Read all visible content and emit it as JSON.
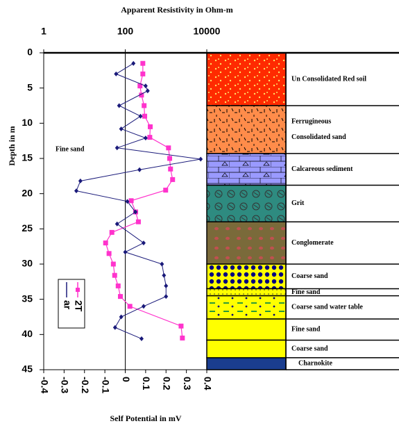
{
  "chart_data": {
    "type": "line",
    "title": "Apparent Resistivity in Ohm-m",
    "y_label": "Depth in m",
    "x_label": "Self Potential in mV",
    "annotation": "Fine sand",
    "ylim": [
      0,
      45
    ],
    "yticks": [
      0,
      5,
      10,
      15,
      20,
      25,
      30,
      35,
      40,
      45
    ],
    "xlim": [
      -0.4,
      0.4
    ],
    "xticks": [
      -0.4,
      -0.3,
      -0.2,
      -0.1,
      0,
      0.1,
      0.2,
      0.3,
      0.4
    ],
    "x2lim": [
      1,
      10000
    ],
    "x2ticks": [
      1,
      100,
      10000
    ],
    "x2log": true,
    "series": [
      {
        "name": "2T",
        "color": "#ff33cc",
        "axis": "x2",
        "depth": [
          1.5,
          3,
          4.7,
          6,
          7.5,
          9,
          10.5,
          12,
          13.5,
          15,
          16.5,
          18,
          19.5,
          21,
          22.6,
          24,
          25.5,
          27,
          28.5,
          30,
          31.6,
          33.1,
          34.6,
          36,
          38.8,
          40.5
        ],
        "values": [
          270,
          270,
          230,
          250,
          290,
          300,
          410,
          400,
          1150,
          1230,
          1290,
          1450,
          980,
          140,
          180,
          210,
          47,
          33,
          40,
          51,
          55,
          67,
          76,
          130,
          2340,
          2520
        ]
      },
      {
        "name": "ar",
        "color": "#1a1a7a",
        "depth": [
          1.5,
          3,
          4.7,
          5.4,
          7.5,
          9,
          10.8,
          12.1,
          13.5,
          15.1,
          16.6,
          18.2,
          19.6,
          21.1,
          22.6,
          24.3,
          27,
          28.3,
          30,
          31.6,
          33.1,
          34.6,
          36,
          37.5,
          39,
          40.6
        ],
        "values": [
          0.04,
          -0.045,
          0.1,
          0.11,
          -0.03,
          0.075,
          -0.02,
          0.1,
          -0.04,
          0.37,
          0.07,
          -0.22,
          -0.24,
          0.01,
          0.05,
          -0.04,
          0.09,
          0,
          0.18,
          0.19,
          0.2,
          0.2,
          0.09,
          -0.02,
          -0.05,
          0.08
        ]
      }
    ]
  },
  "lithology": {
    "layers": [
      {
        "top": 0,
        "bottom": 7.5,
        "label": [
          "Un Consolidated Red soil"
        ],
        "color": "#ff2a00"
      },
      {
        "top": 7.5,
        "bottom": 14.3,
        "label": [
          "Ferrugineous",
          "Consolidated sand"
        ],
        "color": "#ff8c4a"
      },
      {
        "top": 14.3,
        "bottom": 18.8,
        "label": [
          "Calcareous sediment"
        ],
        "color": "#9a9aff"
      },
      {
        "top": 18.8,
        "bottom": 24,
        "label": [
          "Grit"
        ],
        "color": "#2e8b80"
      },
      {
        "top": 24,
        "bottom": 30,
        "label": [
          "Conglomerate"
        ],
        "color": "#7a6a3a"
      },
      {
        "top": 30,
        "bottom": 33.5,
        "label": [
          "Coarse sand"
        ],
        "color": "#ffff00"
      },
      {
        "top": 33.5,
        "bottom": 34.5,
        "label": [
          "Fine sand"
        ],
        "color": "#ffff00"
      },
      {
        "top": 34.5,
        "bottom": 37.8,
        "label": [
          "Coarse sand  water table"
        ],
        "color": "#ffff00"
      },
      {
        "top": 37.8,
        "bottom": 40.8,
        "label": [
          "Fine sand"
        ],
        "color": "#ffff00"
      },
      {
        "top": 40.8,
        "bottom": 43.3,
        "label": [
          "Coarse sand"
        ],
        "color": "#ffff00"
      },
      {
        "top": 43.3,
        "bottom": 45,
        "label": [
          "Charnokite"
        ],
        "color": "#1a3d8f"
      }
    ]
  }
}
